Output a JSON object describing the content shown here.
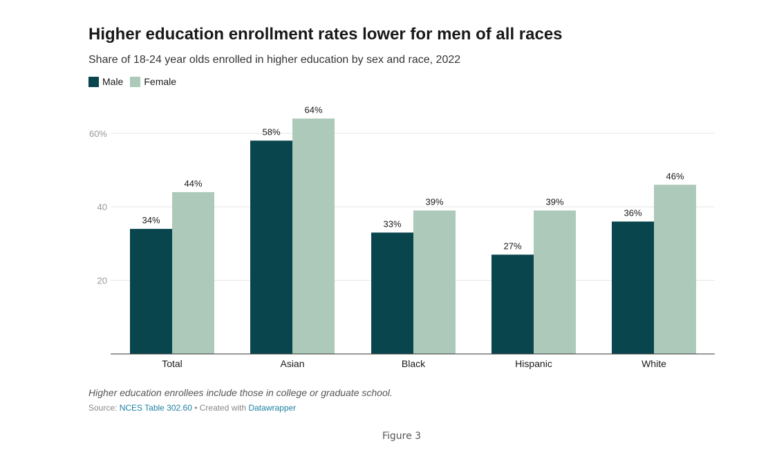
{
  "chart_data": {
    "type": "bar",
    "title": "Higher education enrollment rates lower for men of all races",
    "subtitle": "Share of 18-24 year olds enrolled in higher education by sex and race, 2022",
    "categories": [
      "Total",
      "Asian",
      "Black",
      "Hispanic",
      "White"
    ],
    "series": [
      {
        "name": "Male",
        "color": "#08454d",
        "values": [
          34,
          58,
          33,
          27,
          36
        ],
        "labels": [
          "34%",
          "58%",
          "33%",
          "27%",
          "36%"
        ]
      },
      {
        "name": "Female",
        "color": "#acc9b9",
        "values": [
          44,
          64,
          39,
          39,
          46
        ],
        "labels": [
          "44%",
          "64%",
          "39%",
          "39%",
          "46%"
        ]
      }
    ],
    "ylim": [
      0,
      64
    ],
    "yticks": [
      20,
      40,
      60
    ],
    "ytick_labels": [
      "20",
      "40",
      "60%"
    ],
    "xlabel": "",
    "ylabel": "",
    "grid": true,
    "legend": "top-left"
  },
  "notes": "Higher education enrollees include those in college or graduate school.",
  "source": {
    "prefix": "Source: ",
    "link": "NCES Table 302.60",
    "separator": " • Created with ",
    "tool": "Datawrapper"
  },
  "figure_label": "Figure 3",
  "colors": {
    "male": "#08454d",
    "female": "#acc9b9",
    "gridline": "#e5e5e5",
    "axis": "#333333",
    "link": "#1d81a2"
  }
}
